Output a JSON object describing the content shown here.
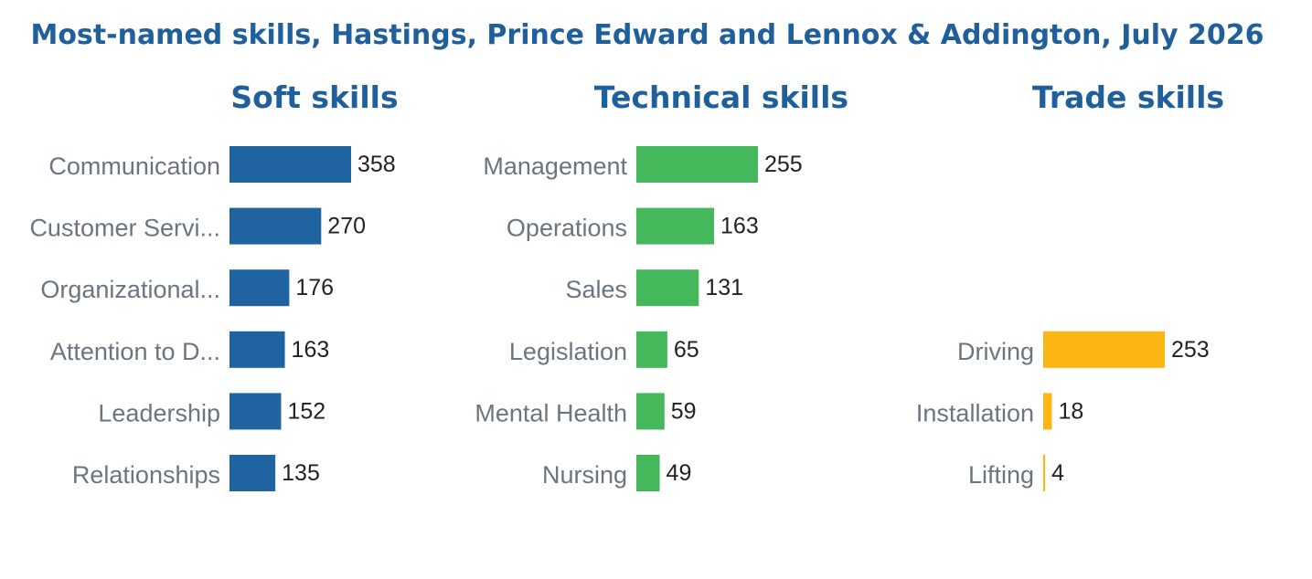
{
  "title": "Most-named skills, Hastings, Prince Edward and Lennox & Addington, July 2026",
  "colors": {
    "title": "#1f5f9b",
    "category_label": "#6b7580",
    "value_label": "#222222"
  },
  "chart_data": [
    {
      "type": "bar",
      "orientation": "horizontal",
      "title": "Soft skills",
      "color": "#1f64a0",
      "categories": [
        "Communication",
        "Customer Servi...",
        "Organizational...",
        "Attention to D...",
        "Leadership",
        "Relationships"
      ],
      "values": [
        358,
        270,
        176,
        163,
        152,
        135
      ],
      "xlim": [
        0,
        358
      ]
    },
    {
      "type": "bar",
      "orientation": "horizontal",
      "title": "Technical skills",
      "color": "#45b85c",
      "categories": [
        "Management",
        "Operations",
        "Sales",
        "Legislation",
        "Mental Health",
        "Nursing"
      ],
      "values": [
        255,
        163,
        131,
        65,
        59,
        49
      ],
      "xlim": [
        0,
        255
      ]
    },
    {
      "type": "bar",
      "orientation": "horizontal",
      "title": "Trade skills",
      "color": "#fbb614",
      "categories": [
        "Driving",
        "Installation",
        "Lifting"
      ],
      "values": [
        253,
        18,
        4
      ],
      "xlim": [
        0,
        253
      ]
    }
  ]
}
